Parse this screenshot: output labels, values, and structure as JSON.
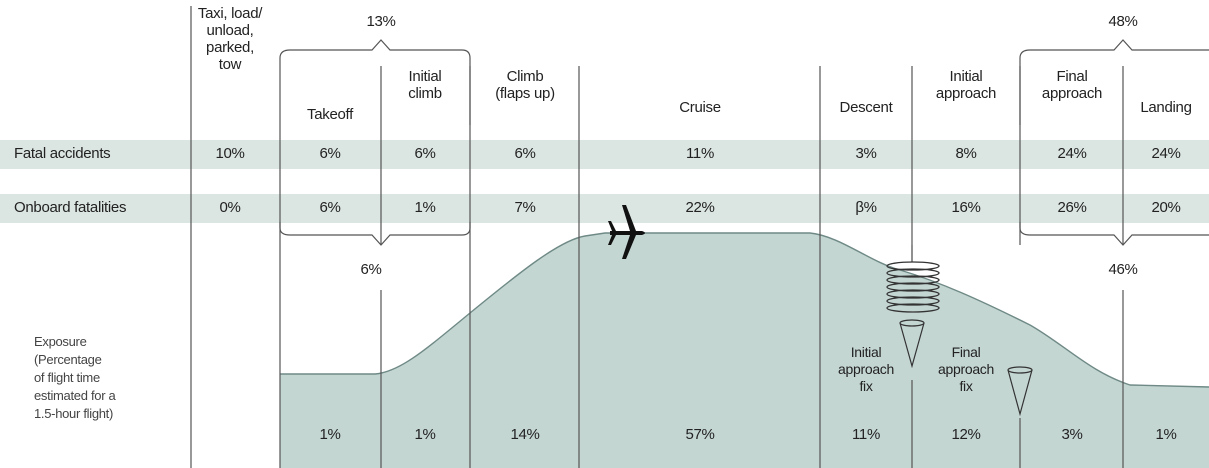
{
  "phases": [
    {
      "key": "taxi",
      "lines": [
        "Taxi, load/",
        "unload,",
        "parked,",
        "tow"
      ]
    },
    {
      "key": "takeoff",
      "lines": [
        "Takeoff"
      ]
    },
    {
      "key": "initial_climb",
      "lines": [
        "Initial",
        "climb"
      ]
    },
    {
      "key": "climb",
      "lines": [
        "Climb",
        "(flaps up)"
      ]
    },
    {
      "key": "cruise",
      "lines": [
        "Cruise"
      ]
    },
    {
      "key": "descent",
      "lines": [
        "Descent"
      ]
    },
    {
      "key": "initial_approach",
      "lines": [
        "Initial",
        "approach"
      ]
    },
    {
      "key": "final_approach",
      "lines": [
        "Final",
        "approach"
      ]
    },
    {
      "key": "landing",
      "lines": [
        "Landing"
      ]
    }
  ],
  "rows": {
    "fatal_accidents": {
      "label": "Fatal accidents",
      "values": [
        "10%",
        "6%",
        "6%",
        "6%",
        "11%",
        "3%",
        "8%",
        "24%",
        "24%"
      ]
    },
    "onboard_fatalities": {
      "label": "Onboard fatalities",
      "values": [
        "0%",
        "6%",
        "1%",
        "7%",
        "22%",
        "β%",
        "16%",
        "26%",
        "20%"
      ]
    }
  },
  "group_totals": {
    "takeoff_climb_accidents": "13%",
    "takeoff_climb_fatalities": "6%",
    "approach_landing_accidents": "48%",
    "approach_landing_fatalities": "46%"
  },
  "exposure": {
    "label_lines": [
      "Exposure",
      "(Percentage",
      "of flight time",
      "estimated for a",
      "1.5-hour flight)"
    ],
    "values": [
      "1%",
      "1%",
      "14%",
      "57%",
      "11%",
      "12%",
      "3%",
      "1%"
    ]
  },
  "fix_labels": {
    "initial_approach_fix": [
      "Initial",
      "approach",
      "fix"
    ],
    "final_approach_fix": [
      "Final",
      "approach",
      "fix"
    ]
  },
  "colors": {
    "band": "#dbe5e2",
    "area_fill": "#c4d6d2",
    "area_stroke": "#6f8a86",
    "divider": "#555555",
    "bracket": "#555555"
  },
  "icons": {
    "aircraft": "airplane-icon",
    "holding": "holding-pattern-icon",
    "fix": "approach-fix-cone-icon"
  }
}
